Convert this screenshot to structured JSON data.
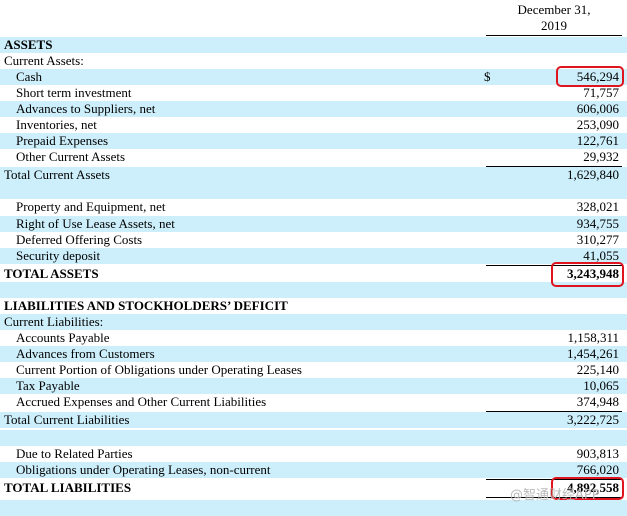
{
  "header": {
    "line1": "December 31,",
    "line2": "2019"
  },
  "currency_symbol": "$",
  "rows": [
    {
      "label": "ASSETS",
      "value": "",
      "type": "bold"
    },
    {
      "label": "Current Assets:",
      "value": "",
      "type": "plain"
    },
    {
      "label": "Cash",
      "value": "546,294",
      "type": "ind"
    },
    {
      "label": "Short term investment",
      "value": "71,757",
      "type": "ind"
    },
    {
      "label": "Advances to Suppliers, net",
      "value": "606,006",
      "type": "ind"
    },
    {
      "label": "Inventories, net",
      "value": "253,090",
      "type": "ind"
    },
    {
      "label": "Prepaid Expenses",
      "value": "122,761",
      "type": "ind"
    },
    {
      "label": "Other Current Assets",
      "value": "29,932",
      "type": "ind"
    },
    {
      "label": "Total Current Assets",
      "value": "1,629,840",
      "type": "plain"
    },
    {
      "label": "",
      "value": "",
      "type": "blank"
    },
    {
      "label": "Property and Equipment, net",
      "value": "328,021",
      "type": "ind"
    },
    {
      "label": "Right of Use Lease Assets, net",
      "value": "934,755",
      "type": "ind"
    },
    {
      "label": "Deferred Offering Costs",
      "value": "310,277",
      "type": "ind"
    },
    {
      "label": "Security deposit",
      "value": "41,055",
      "type": "ind"
    },
    {
      "label": "TOTAL ASSETS",
      "value": "3,243,948",
      "type": "bold"
    },
    {
      "label": "",
      "value": "",
      "type": "blank"
    },
    {
      "label": "LIABILITIES AND STOCKHOLDERS’ DEFICIT",
      "value": "",
      "type": "bold"
    },
    {
      "label": "Current Liabilities:",
      "value": "",
      "type": "plain"
    },
    {
      "label": "Accounts Payable",
      "value": "1,158,311",
      "type": "ind"
    },
    {
      "label": "Advances from Customers",
      "value": "1,454,261",
      "type": "ind"
    },
    {
      "label": "Current Portion of Obligations under Operating Leases",
      "value": "225,140",
      "type": "ind"
    },
    {
      "label": "Tax Payable",
      "value": "10,065",
      "type": "ind"
    },
    {
      "label": "Accrued Expenses and Other Current Liabilities",
      "value": "374,948",
      "type": "ind"
    },
    {
      "label": "Total Current Liabilities",
      "value": "3,222,725",
      "type": "plain"
    },
    {
      "label": "",
      "value": "",
      "type": "blank"
    },
    {
      "label": "Due to Related Parties",
      "value": "903,813",
      "type": "ind"
    },
    {
      "label": "Obligations under Operating Leases, non-current",
      "value": "766,020",
      "type": "ind"
    },
    {
      "label": "TOTAL LIABILITIES",
      "value": "4,892,558",
      "type": "bold"
    }
  ],
  "watermark": "@智通财经APP"
}
